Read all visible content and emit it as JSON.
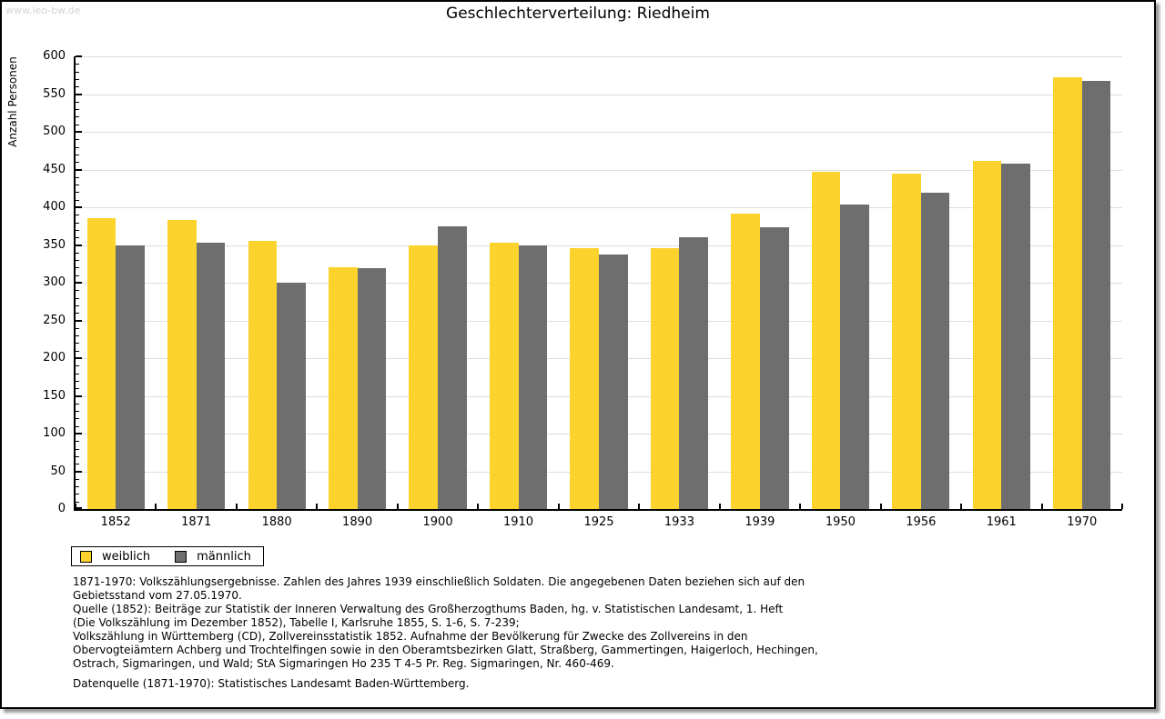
{
  "watermark": "www.leo-bw.de",
  "title": "Geschlechterverteilung: Riedheim",
  "chart_data": {
    "type": "bar",
    "title": "Geschlechterverteilung: Riedheim",
    "xlabel": "",
    "ylabel": "Anzahl Personen",
    "categories": [
      "1852",
      "1871",
      "1880",
      "1890",
      "1900",
      "1910",
      "1925",
      "1933",
      "1939",
      "1950",
      "1956",
      "1961",
      "1970"
    ],
    "series": [
      {
        "name": "weiblich",
        "color": "#FCD32D",
        "values": [
          385,
          383,
          355,
          321,
          349,
          353,
          346,
          346,
          391,
          447,
          445,
          462,
          572
        ]
      },
      {
        "name": "männlich",
        "color": "#6E6E6E",
        "values": [
          350,
          353,
          300,
          319,
          375,
          350,
          337,
          360,
          373,
          404,
          419,
          458,
          567
        ]
      }
    ],
    "ylim": [
      0,
      600
    ],
    "ytick_step": 50,
    "yminor_step": 10,
    "grid": true,
    "gridline_color": "#dddddd",
    "legend_position": "bottom-left"
  },
  "footnotes": {
    "lines": [
      "1871-1970: Volkszählungsergebnisse. Zahlen des Jahres 1939 einschließlich Soldaten. Die angegebenen Daten beziehen sich auf den",
      "Gebietsstand vom 27.05.1970.",
      "Quelle (1852): Beiträge zur Statistik der Inneren Verwaltung des Großherzogthums Baden, hg. v. Statistischen Landesamt, 1. Heft",
      "(Die Volkszählung im Dezember 1852), Tabelle I, Karlsruhe 1855, S. 1-6, S. 7-239;",
      "Volkszählung in Württemberg (CD), Zollvereinsstatistik 1852. Aufnahme der Bevölkerung für Zwecke des Zollvereins in den",
      "Obervogteiämtern Achberg und Trochtelfingen sowie in den Oberamtsbezirken Glatt, Straßberg, Gammertingen, Haigerloch, Hechingen,",
      "Ostrach, Sigmaringen, und Wald; StA Sigmaringen Ho 235 T 4-5 Pr. Reg. Sigmaringen, Nr. 460-469."
    ],
    "datasource": "Datenquelle (1871-1970): Statistisches Landesamt Baden-Württemberg."
  }
}
